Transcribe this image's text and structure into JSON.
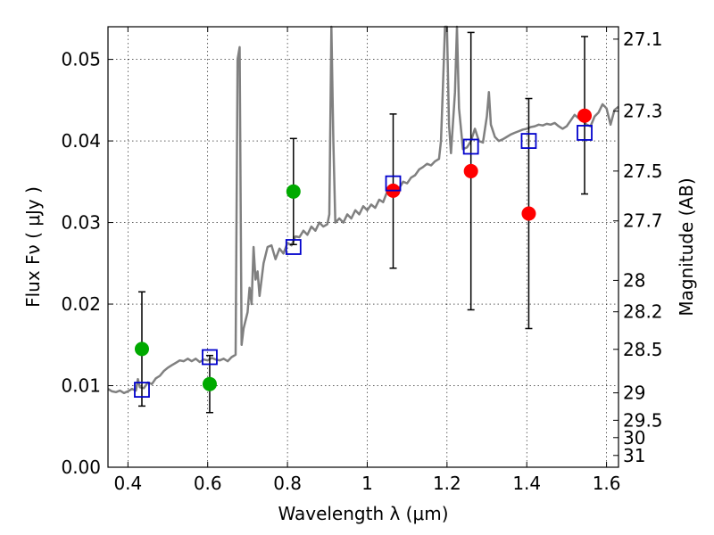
{
  "chart_data": {
    "type": "scatter",
    "title": "",
    "xlabel": "Wavelength  λ (μm)",
    "ylabel": "Flux  Fν  ( μJy )",
    "y2label": "Magnitude (AB)",
    "xlim": [
      0.35,
      1.63
    ],
    "ylim": [
      0.0,
      0.054
    ],
    "x_ticks": [
      0.4,
      0.6,
      0.8,
      1.0,
      1.2,
      1.4,
      1.6
    ],
    "x_tick_labels": [
      "0.4",
      "0.6",
      "0.8",
      "1",
      "1.2",
      "1.4",
      "1.6"
    ],
    "y_ticks": [
      0.0,
      0.01,
      0.02,
      0.03,
      0.04,
      0.05
    ],
    "y_tick_labels": [
      "0.00",
      "0.01",
      "0.02",
      "0.03",
      "0.04",
      "0.05"
    ],
    "y2_ticks": [
      {
        "label": "27.1",
        "mag": 27.1
      },
      {
        "label": "27.3",
        "mag": 27.3
      },
      {
        "label": "27.5",
        "mag": 27.5
      },
      {
        "label": "27.7",
        "mag": 27.7
      },
      {
        "label": "28",
        "mag": 28.0
      },
      {
        "label": "28.2",
        "mag": 28.2
      },
      {
        "label": "28.5",
        "mag": 28.5
      },
      {
        "label": "29",
        "mag": 29.0
      },
      {
        "label": "29.5",
        "mag": 29.5
      },
      {
        "label": "30",
        "mag": 30.0
      },
      {
        "label": "31",
        "mag": 31.0
      }
    ],
    "grid": true,
    "colors": {
      "model": "#808080",
      "optical": "#00aa00",
      "nir": "#ff0000",
      "model_phot": "#0000cc",
      "errorbar": "#000000"
    },
    "series": [
      {
        "kind": "line",
        "points": [
          [
            0.35,
            0.0096
          ],
          [
            0.36,
            0.0093
          ],
          [
            0.37,
            0.0092
          ],
          [
            0.38,
            0.0094
          ],
          [
            0.39,
            0.0091
          ],
          [
            0.4,
            0.0093
          ],
          [
            0.41,
            0.0096
          ],
          [
            0.42,
            0.0094
          ],
          [
            0.425,
            0.0108
          ],
          [
            0.43,
            0.0098
          ],
          [
            0.44,
            0.0097
          ],
          [
            0.45,
            0.0104
          ],
          [
            0.46,
            0.0102
          ],
          [
            0.47,
            0.0109
          ],
          [
            0.48,
            0.0112
          ],
          [
            0.49,
            0.0118
          ],
          [
            0.5,
            0.0122
          ],
          [
            0.51,
            0.0125
          ],
          [
            0.52,
            0.0128
          ],
          [
            0.53,
            0.0131
          ],
          [
            0.54,
            0.013
          ],
          [
            0.55,
            0.0133
          ],
          [
            0.56,
            0.013
          ],
          [
            0.57,
            0.0133
          ],
          [
            0.58,
            0.0129
          ],
          [
            0.59,
            0.0132
          ],
          [
            0.6,
            0.0131
          ],
          [
            0.61,
            0.0134
          ],
          [
            0.62,
            0.0132
          ],
          [
            0.63,
            0.0131
          ],
          [
            0.64,
            0.0133
          ],
          [
            0.65,
            0.013
          ],
          [
            0.66,
            0.0135
          ],
          [
            0.67,
            0.0138
          ],
          [
            0.675,
            0.05
          ],
          [
            0.68,
            0.0515
          ],
          [
            0.685,
            0.015
          ],
          [
            0.69,
            0.017
          ],
          [
            0.7,
            0.019
          ],
          [
            0.705,
            0.022
          ],
          [
            0.71,
            0.02
          ],
          [
            0.715,
            0.027
          ],
          [
            0.72,
            0.023
          ],
          [
            0.725,
            0.024
          ],
          [
            0.73,
            0.021
          ],
          [
            0.74,
            0.025
          ],
          [
            0.75,
            0.027
          ],
          [
            0.76,
            0.0272
          ],
          [
            0.77,
            0.0255
          ],
          [
            0.78,
            0.0268
          ],
          [
            0.79,
            0.0262
          ],
          [
            0.8,
            0.0275
          ],
          [
            0.81,
            0.0272
          ],
          [
            0.82,
            0.0283
          ],
          [
            0.83,
            0.0282
          ],
          [
            0.84,
            0.029
          ],
          [
            0.85,
            0.0285
          ],
          [
            0.86,
            0.0295
          ],
          [
            0.87,
            0.029
          ],
          [
            0.88,
            0.03
          ],
          [
            0.89,
            0.0295
          ],
          [
            0.9,
            0.0298
          ],
          [
            0.905,
            0.031
          ],
          [
            0.91,
            0.054
          ],
          [
            0.915,
            0.04
          ],
          [
            0.92,
            0.03
          ],
          [
            0.93,
            0.0305
          ],
          [
            0.94,
            0.03
          ],
          [
            0.95,
            0.031
          ],
          [
            0.96,
            0.0305
          ],
          [
            0.97,
            0.0315
          ],
          [
            0.98,
            0.031
          ],
          [
            0.99,
            0.032
          ],
          [
            1.0,
            0.0315
          ],
          [
            1.01,
            0.0322
          ],
          [
            1.02,
            0.0318
          ],
          [
            1.03,
            0.0328
          ],
          [
            1.04,
            0.0325
          ],
          [
            1.05,
            0.0338
          ],
          [
            1.06,
            0.0335
          ],
          [
            1.07,
            0.0345
          ],
          [
            1.08,
            0.0342
          ],
          [
            1.09,
            0.035
          ],
          [
            1.1,
            0.0348
          ],
          [
            1.11,
            0.0355
          ],
          [
            1.12,
            0.0358
          ],
          [
            1.13,
            0.0365
          ],
          [
            1.14,
            0.0368
          ],
          [
            1.15,
            0.0372
          ],
          [
            1.16,
            0.037
          ],
          [
            1.17,
            0.0375
          ],
          [
            1.18,
            0.0378
          ],
          [
            1.185,
            0.04
          ],
          [
            1.19,
            0.047
          ],
          [
            1.195,
            0.054
          ],
          [
            1.2,
            0.054
          ],
          [
            1.205,
            0.042
          ],
          [
            1.21,
            0.0385
          ],
          [
            1.22,
            0.046
          ],
          [
            1.225,
            0.054
          ],
          [
            1.23,
            0.044
          ],
          [
            1.24,
            0.039
          ],
          [
            1.25,
            0.0392
          ],
          [
            1.26,
            0.04
          ],
          [
            1.27,
            0.0415
          ],
          [
            1.28,
            0.04
          ],
          [
            1.29,
            0.0398
          ],
          [
            1.3,
            0.043
          ],
          [
            1.305,
            0.046
          ],
          [
            1.31,
            0.042
          ],
          [
            1.32,
            0.0405
          ],
          [
            1.33,
            0.04
          ],
          [
            1.34,
            0.0402
          ],
          [
            1.35,
            0.0405
          ],
          [
            1.36,
            0.0408
          ],
          [
            1.37,
            0.041
          ],
          [
            1.38,
            0.0412
          ],
          [
            1.39,
            0.0414
          ],
          [
            1.4,
            0.0415
          ],
          [
            1.41,
            0.0417
          ],
          [
            1.42,
            0.0418
          ],
          [
            1.43,
            0.042
          ],
          [
            1.44,
            0.0419
          ],
          [
            1.45,
            0.0421
          ],
          [
            1.46,
            0.042
          ],
          [
            1.47,
            0.0422
          ],
          [
            1.48,
            0.0418
          ],
          [
            1.49,
            0.0415
          ],
          [
            1.5,
            0.0418
          ],
          [
            1.51,
            0.0425
          ],
          [
            1.52,
            0.0432
          ],
          [
            1.53,
            0.0428
          ],
          [
            1.54,
            0.0425
          ],
          [
            1.55,
            0.042
          ],
          [
            1.56,
            0.0418
          ],
          [
            1.57,
            0.043
          ],
          [
            1.58,
            0.0435
          ],
          [
            1.59,
            0.0445
          ],
          [
            1.6,
            0.044
          ],
          [
            1.61,
            0.042
          ],
          [
            1.62,
            0.0438
          ],
          [
            1.63,
            0.0442
          ]
        ]
      },
      {
        "kind": "errorbar",
        "points": [
          {
            "x": 0.435,
            "y": 0.0145,
            "lo": 0.0075,
            "hi": 0.0215
          },
          {
            "x": 0.605,
            "y": 0.0102,
            "lo": 0.0067,
            "hi": 0.0137
          },
          {
            "x": 0.815,
            "y": 0.0338,
            "lo": 0.0273,
            "hi": 0.0403
          },
          {
            "x": 1.065,
            "y": 0.0339,
            "lo": 0.0244,
            "hi": 0.0433
          },
          {
            "x": 1.26,
            "y": 0.0363,
            "lo": 0.0193,
            "hi": 0.0533
          },
          {
            "x": 1.405,
            "y": 0.0311,
            "lo": 0.017,
            "hi": 0.0452
          },
          {
            "x": 1.545,
            "y": 0.0431,
            "lo": 0.0335,
            "hi": 0.0528
          }
        ]
      },
      {
        "kind": "circle",
        "color_key": "optical",
        "points": [
          [
            0.435,
            0.0145
          ],
          [
            0.605,
            0.0102
          ],
          [
            0.815,
            0.0338
          ]
        ]
      },
      {
        "kind": "circle",
        "color_key": "nir",
        "points": [
          [
            1.065,
            0.0339
          ],
          [
            1.26,
            0.0363
          ],
          [
            1.405,
            0.0311
          ],
          [
            1.545,
            0.0431
          ]
        ]
      },
      {
        "kind": "square",
        "color_key": "model_phot",
        "points": [
          [
            0.435,
            0.0095
          ],
          [
            0.605,
            0.0135
          ],
          [
            0.815,
            0.027
          ],
          [
            1.065,
            0.0348
          ],
          [
            1.26,
            0.0393
          ],
          [
            1.405,
            0.04
          ],
          [
            1.545,
            0.041
          ]
        ]
      }
    ]
  }
}
